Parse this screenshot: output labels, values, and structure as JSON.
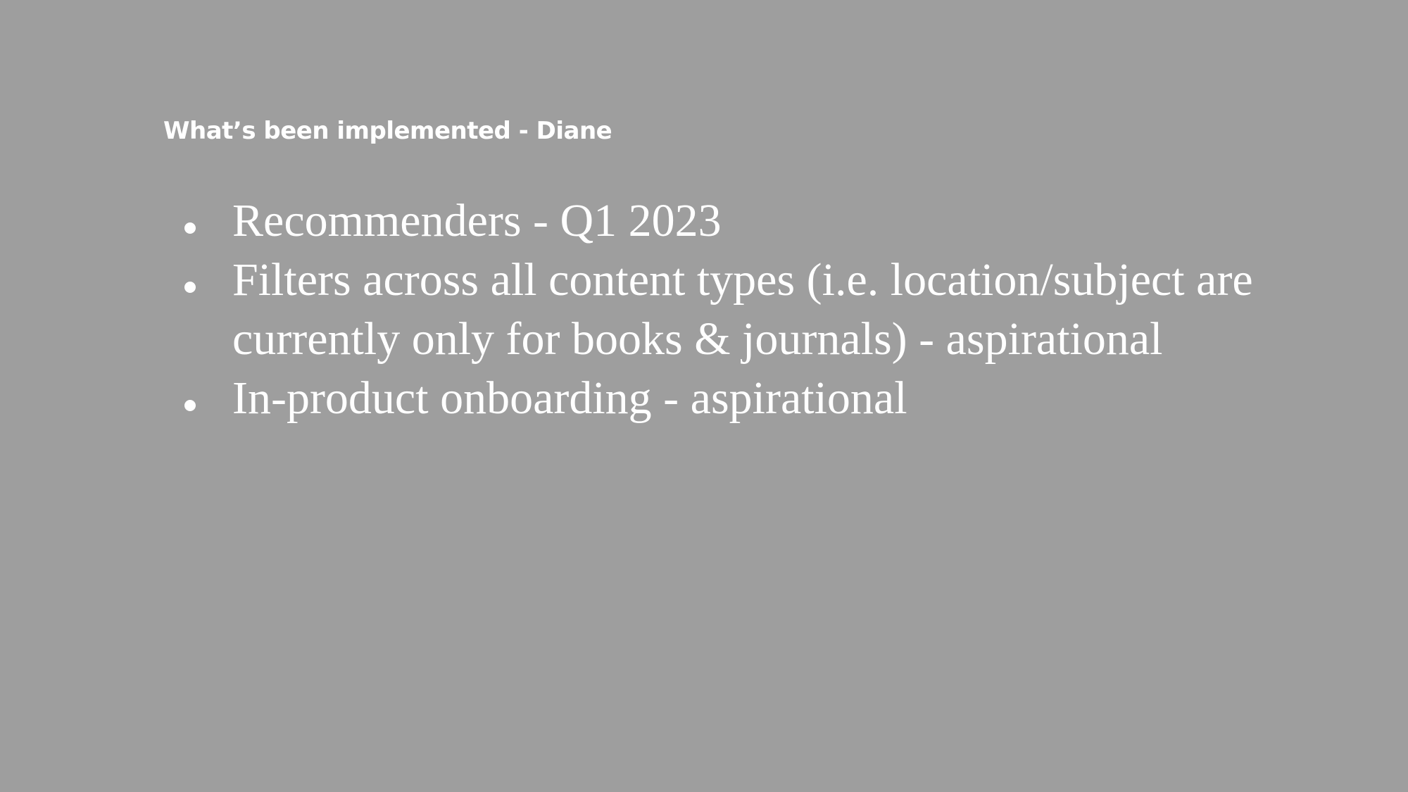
{
  "slide": {
    "title": "What’s been implemented - Diane",
    "bullets": [
      "Recommenders - Q1 2023",
      "Filters across all content types (i.e. location/subject are currently only for books & journals) - aspirational",
      "In-product onboarding - aspirational"
    ]
  },
  "colors": {
    "background": "#9e9e9e",
    "text": "#ffffff"
  }
}
